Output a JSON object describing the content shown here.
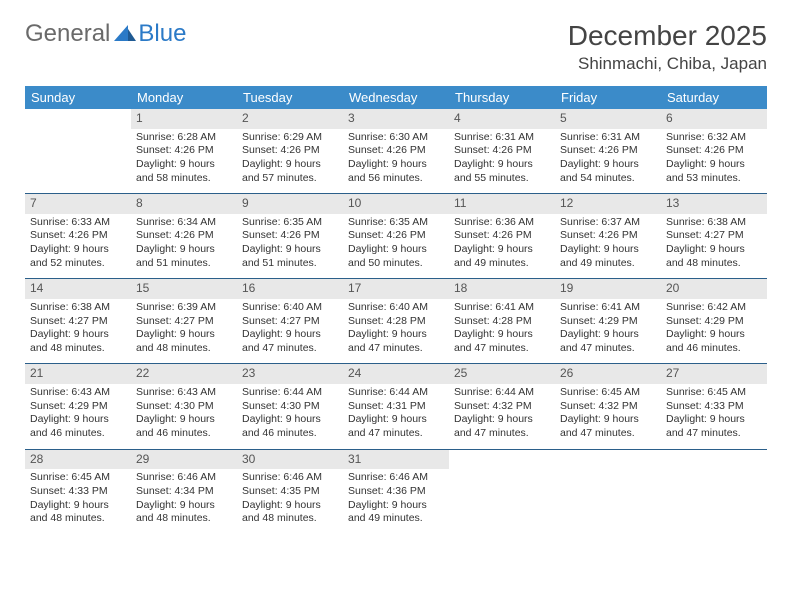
{
  "logo": {
    "general": "General",
    "blue": "Blue"
  },
  "title": "December 2025",
  "location": "Shinmachi, Chiba, Japan",
  "colors": {
    "header_bg": "#3b8bc9",
    "header_text": "#ffffff",
    "daynum_bg": "#e8e8e8",
    "row_divider": "#2b5f8a",
    "logo_blue": "#2b7ac7",
    "logo_gray": "#6a6a6a"
  },
  "weekdays": [
    "Sunday",
    "Monday",
    "Tuesday",
    "Wednesday",
    "Thursday",
    "Friday",
    "Saturday"
  ],
  "weeks": [
    [
      null,
      {
        "n": "1",
        "sr": "6:28 AM",
        "ss": "4:26 PM",
        "dl": "9 hours and 58 minutes."
      },
      {
        "n": "2",
        "sr": "6:29 AM",
        "ss": "4:26 PM",
        "dl": "9 hours and 57 minutes."
      },
      {
        "n": "3",
        "sr": "6:30 AM",
        "ss": "4:26 PM",
        "dl": "9 hours and 56 minutes."
      },
      {
        "n": "4",
        "sr": "6:31 AM",
        "ss": "4:26 PM",
        "dl": "9 hours and 55 minutes."
      },
      {
        "n": "5",
        "sr": "6:31 AM",
        "ss": "4:26 PM",
        "dl": "9 hours and 54 minutes."
      },
      {
        "n": "6",
        "sr": "6:32 AM",
        "ss": "4:26 PM",
        "dl": "9 hours and 53 minutes."
      }
    ],
    [
      {
        "n": "7",
        "sr": "6:33 AM",
        "ss": "4:26 PM",
        "dl": "9 hours and 52 minutes."
      },
      {
        "n": "8",
        "sr": "6:34 AM",
        "ss": "4:26 PM",
        "dl": "9 hours and 51 minutes."
      },
      {
        "n": "9",
        "sr": "6:35 AM",
        "ss": "4:26 PM",
        "dl": "9 hours and 51 minutes."
      },
      {
        "n": "10",
        "sr": "6:35 AM",
        "ss": "4:26 PM",
        "dl": "9 hours and 50 minutes."
      },
      {
        "n": "11",
        "sr": "6:36 AM",
        "ss": "4:26 PM",
        "dl": "9 hours and 49 minutes."
      },
      {
        "n": "12",
        "sr": "6:37 AM",
        "ss": "4:26 PM",
        "dl": "9 hours and 49 minutes."
      },
      {
        "n": "13",
        "sr": "6:38 AM",
        "ss": "4:27 PM",
        "dl": "9 hours and 48 minutes."
      }
    ],
    [
      {
        "n": "14",
        "sr": "6:38 AM",
        "ss": "4:27 PM",
        "dl": "9 hours and 48 minutes."
      },
      {
        "n": "15",
        "sr": "6:39 AM",
        "ss": "4:27 PM",
        "dl": "9 hours and 48 minutes."
      },
      {
        "n": "16",
        "sr": "6:40 AM",
        "ss": "4:27 PM",
        "dl": "9 hours and 47 minutes."
      },
      {
        "n": "17",
        "sr": "6:40 AM",
        "ss": "4:28 PM",
        "dl": "9 hours and 47 minutes."
      },
      {
        "n": "18",
        "sr": "6:41 AM",
        "ss": "4:28 PM",
        "dl": "9 hours and 47 minutes."
      },
      {
        "n": "19",
        "sr": "6:41 AM",
        "ss": "4:29 PM",
        "dl": "9 hours and 47 minutes."
      },
      {
        "n": "20",
        "sr": "6:42 AM",
        "ss": "4:29 PM",
        "dl": "9 hours and 46 minutes."
      }
    ],
    [
      {
        "n": "21",
        "sr": "6:43 AM",
        "ss": "4:29 PM",
        "dl": "9 hours and 46 minutes."
      },
      {
        "n": "22",
        "sr": "6:43 AM",
        "ss": "4:30 PM",
        "dl": "9 hours and 46 minutes."
      },
      {
        "n": "23",
        "sr": "6:44 AM",
        "ss": "4:30 PM",
        "dl": "9 hours and 46 minutes."
      },
      {
        "n": "24",
        "sr": "6:44 AM",
        "ss": "4:31 PM",
        "dl": "9 hours and 47 minutes."
      },
      {
        "n": "25",
        "sr": "6:44 AM",
        "ss": "4:32 PM",
        "dl": "9 hours and 47 minutes."
      },
      {
        "n": "26",
        "sr": "6:45 AM",
        "ss": "4:32 PM",
        "dl": "9 hours and 47 minutes."
      },
      {
        "n": "27",
        "sr": "6:45 AM",
        "ss": "4:33 PM",
        "dl": "9 hours and 47 minutes."
      }
    ],
    [
      {
        "n": "28",
        "sr": "6:45 AM",
        "ss": "4:33 PM",
        "dl": "9 hours and 48 minutes."
      },
      {
        "n": "29",
        "sr": "6:46 AM",
        "ss": "4:34 PM",
        "dl": "9 hours and 48 minutes."
      },
      {
        "n": "30",
        "sr": "6:46 AM",
        "ss": "4:35 PM",
        "dl": "9 hours and 48 minutes."
      },
      {
        "n": "31",
        "sr": "6:46 AM",
        "ss": "4:36 PM",
        "dl": "9 hours and 49 minutes."
      },
      null,
      null,
      null
    ]
  ],
  "labels": {
    "sunrise": "Sunrise:",
    "sunset": "Sunset:",
    "daylight": "Daylight:"
  }
}
